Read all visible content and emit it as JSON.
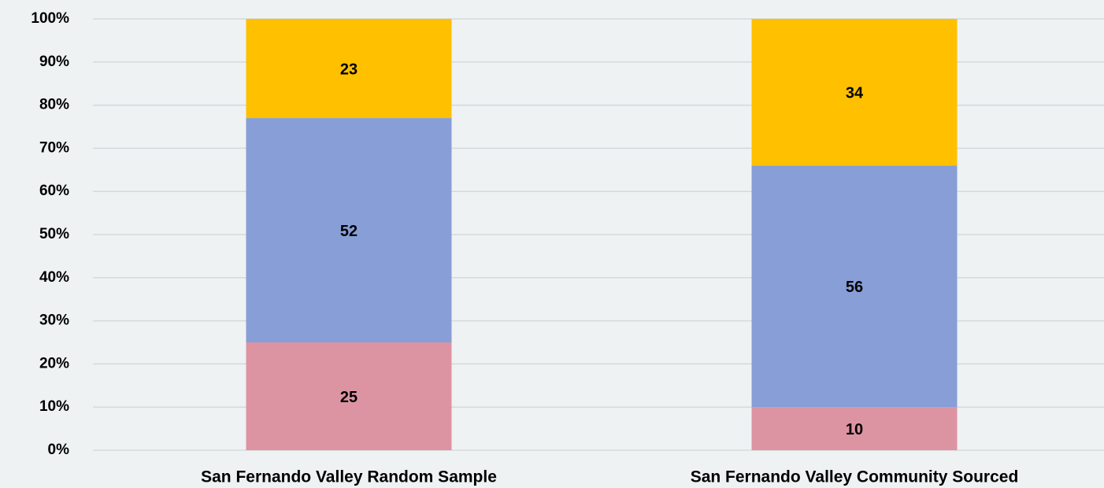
{
  "chart_data": {
    "type": "stacked_bar",
    "categories": [
      "San Fernando Valley Random Sample",
      "San Fernando Valley Community Sourced"
    ],
    "series": [
      {
        "color": "#dc94a3",
        "values": [
          25,
          10
        ]
      },
      {
        "color": "#879ed7",
        "values": [
          52,
          56
        ]
      },
      {
        "color": "#ffc000",
        "values": [
          23,
          34
        ]
      }
    ],
    "ylim": [
      0,
      100
    ],
    "yticks": [
      {
        "value": 0,
        "label": "0%"
      },
      {
        "value": 10,
        "label": "10%"
      },
      {
        "value": 20,
        "label": "20%"
      },
      {
        "value": 30,
        "label": "30%"
      },
      {
        "value": 40,
        "label": "40%"
      },
      {
        "value": 50,
        "label": "50%"
      },
      {
        "value": 60,
        "label": "60%"
      },
      {
        "value": 70,
        "label": "70%"
      },
      {
        "value": 80,
        "label": "80%"
      },
      {
        "value": 90,
        "label": "90%"
      },
      {
        "value": 100,
        "label": "100%"
      }
    ],
    "grid": true
  }
}
